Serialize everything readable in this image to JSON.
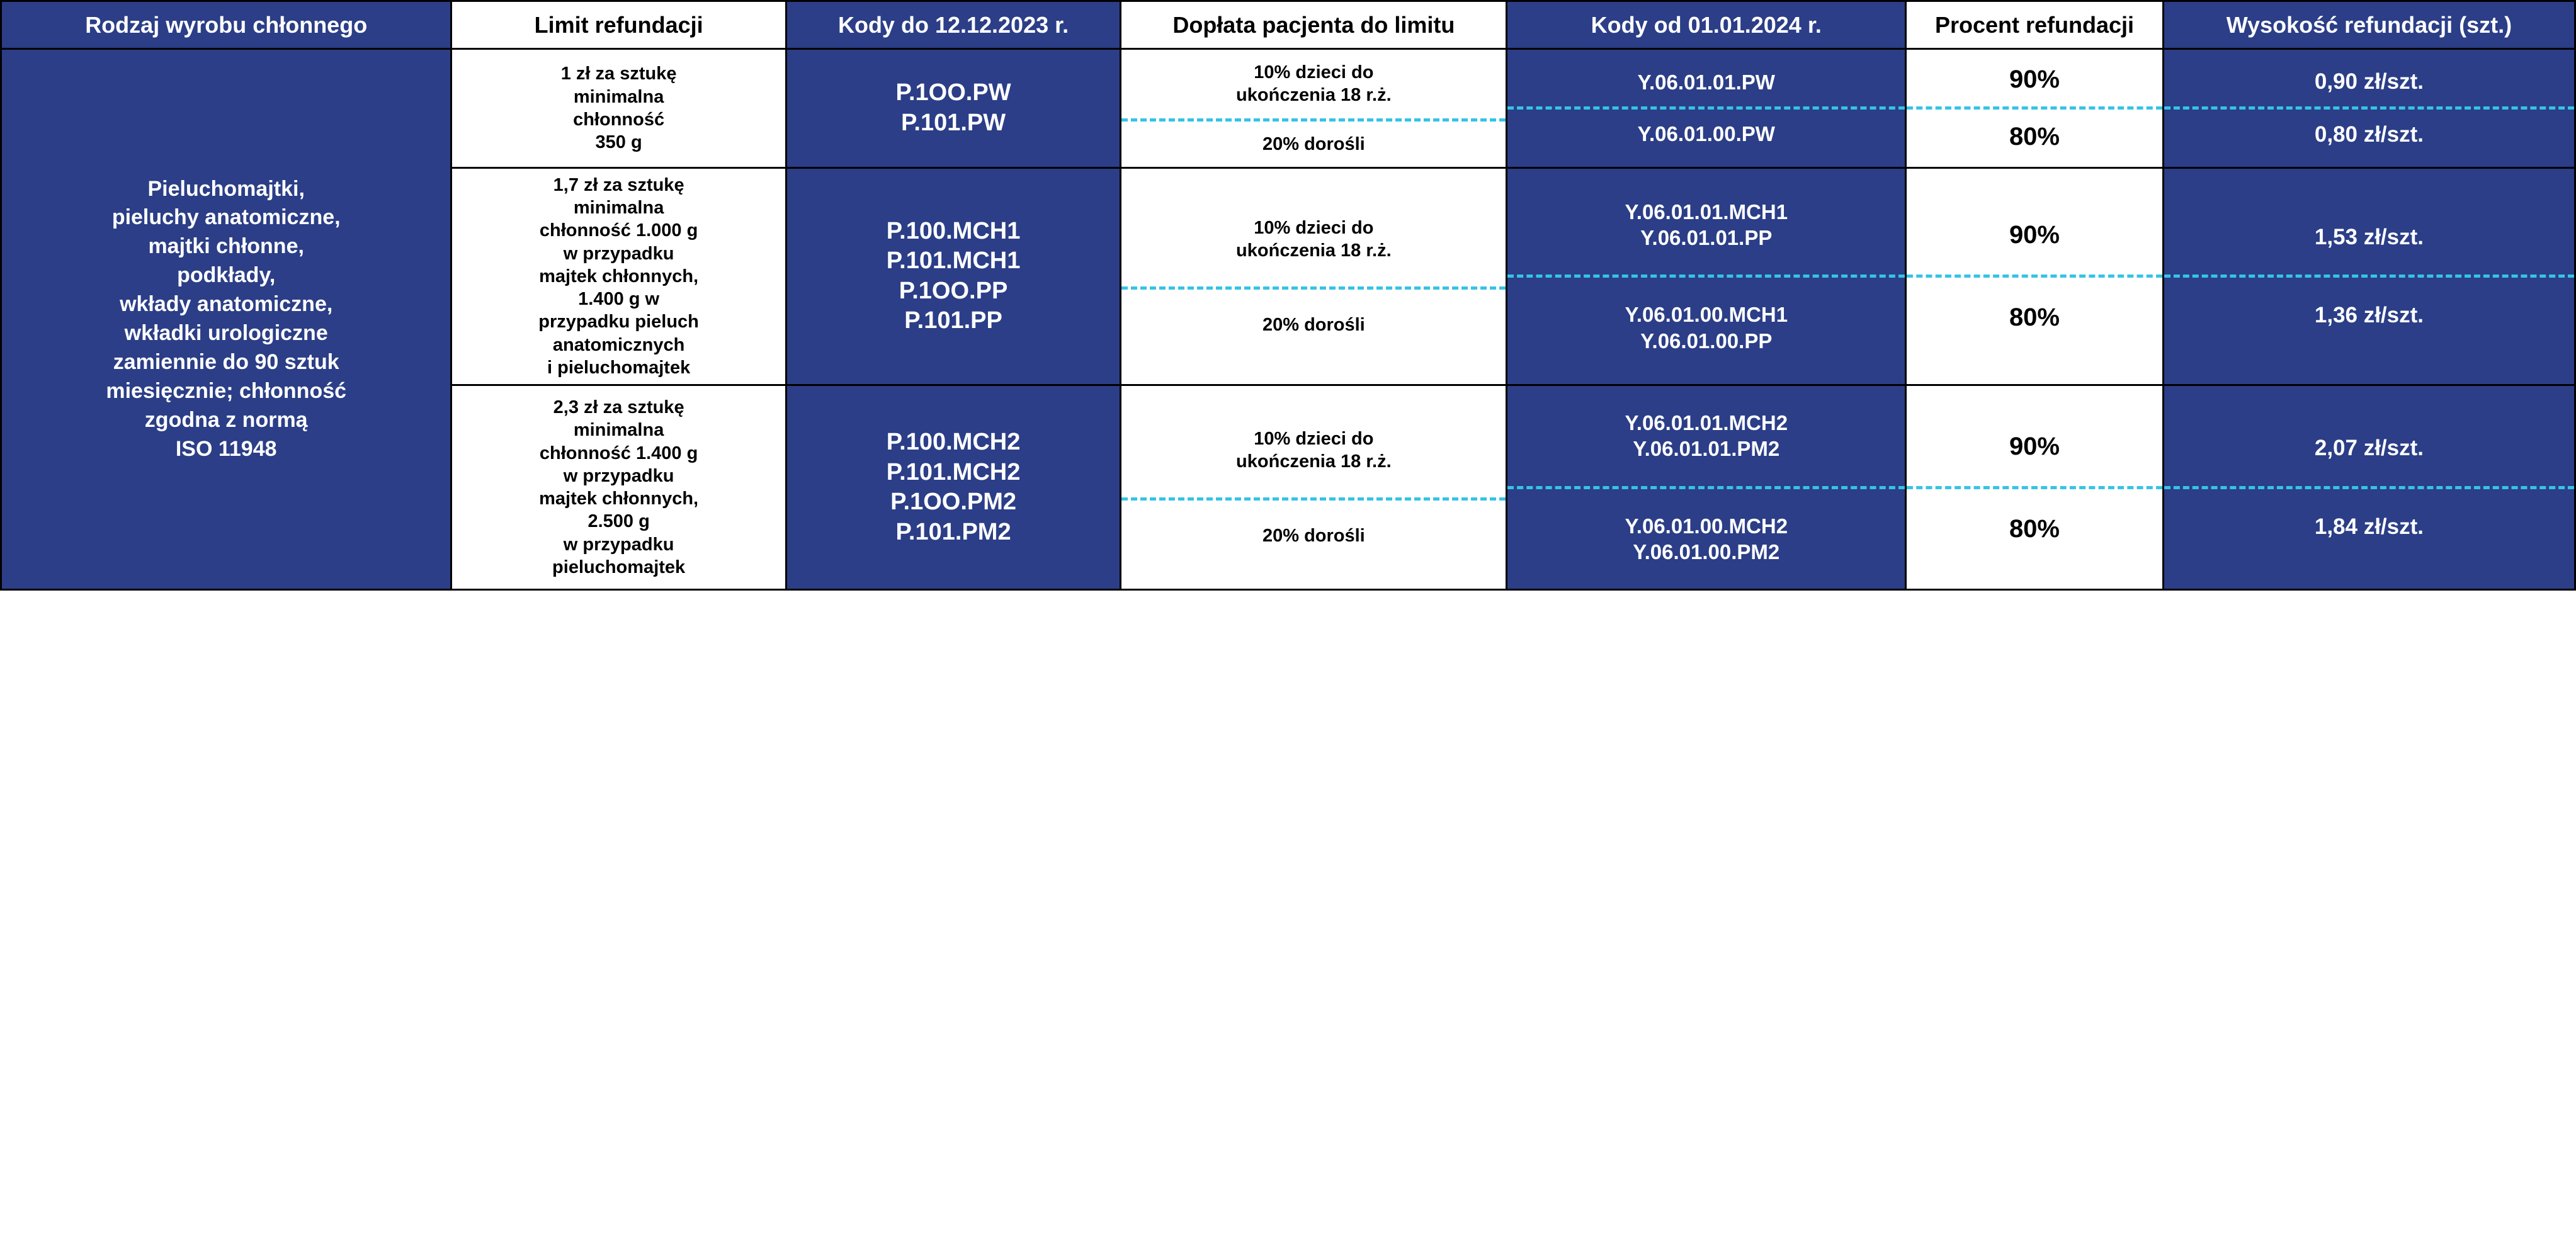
{
  "colors": {
    "blue": "#2b3e87",
    "white": "#ffffff",
    "black": "#000000",
    "dash": "#36c3e6"
  },
  "headers": {
    "c1": "Rodzaj wyrobu chłonnego",
    "c2": "Limit refundacji",
    "c3": "Kody do 12.12.2023 r.",
    "c4": "Dopłata pacjenta do limitu",
    "c5": "Kody od 01.01.2024 r.",
    "c6": "Procent refundacji",
    "c7": "Wysokość refundacji (szt.)"
  },
  "rowlabel": "Pieluchomajtki,\npieluchy anatomiczne,\nmajtki chłonne,\npodkłady,\nwkłady anatomiczne,\nwkładki urologiczne\nzamiennie do 90 sztuk\nmiesięcznie; chłonność\nzgodna z normą\nISO 11948",
  "groups": [
    {
      "limit": "1 zł za sztukę\nminimalna\nchłonność\n350 g",
      "codes_old": "P.1OO.PW\nP.101.PW",
      "top": {
        "doplata": "10% dzieci do\nukończenia 18 r.ż.",
        "codes_new": "Y.06.01.01.PW",
        "procent": "90%",
        "wys": "0,90 zł/szt."
      },
      "bot": {
        "doplata": "20% dorośli",
        "codes_new": "Y.06.01.00.PW",
        "procent": "80%",
        "wys": "0,80 zł/szt."
      }
    },
    {
      "limit": "1,7 zł za sztukę\nminimalna\nchłonność 1.000 g\nw przypadku\nmajtek chłonnych,\n1.400 g w\nprzypadku pieluch\nanatomicznych\ni pieluchomajtek",
      "codes_old": "P.100.MCH1\nP.101.MCH1\nP.1OO.PP\nP.101.PP",
      "top": {
        "doplata": "10% dzieci do\nukończenia 18 r.ż.",
        "codes_new": "Y.06.01.01.MCH1\nY.06.01.01.PP",
        "procent": "90%",
        "wys": "1,53 zł/szt."
      },
      "bot": {
        "doplata": "20% dorośli",
        "codes_new": "Y.06.01.00.MCH1\nY.06.01.00.PP",
        "procent": "80%",
        "wys": "1,36 zł/szt."
      }
    },
    {
      "limit": "2,3 zł za sztukę\nminimalna\nchłonność 1.400 g\nw przypadku\nmajtek chłonnych,\n2.500 g\nw przypadku\npieluchomajtek",
      "codes_old": "P.100.MCH2\nP.101.MCH2\nP.1OO.PM2\nP.101.PM2",
      "top": {
        "doplata": "10% dzieci do\nukończenia 18 r.ż.",
        "codes_new": "Y.06.01.01.MCH2\nY.06.01.01.PM2",
        "procent": "90%",
        "wys": "2,07 zł/szt."
      },
      "bot": {
        "doplata": "20% dorośli",
        "codes_new": "Y.06.01.00.MCH2\nY.06.01.00.PM2",
        "procent": "80%",
        "wys": "1,84 zł/szt."
      }
    }
  ]
}
